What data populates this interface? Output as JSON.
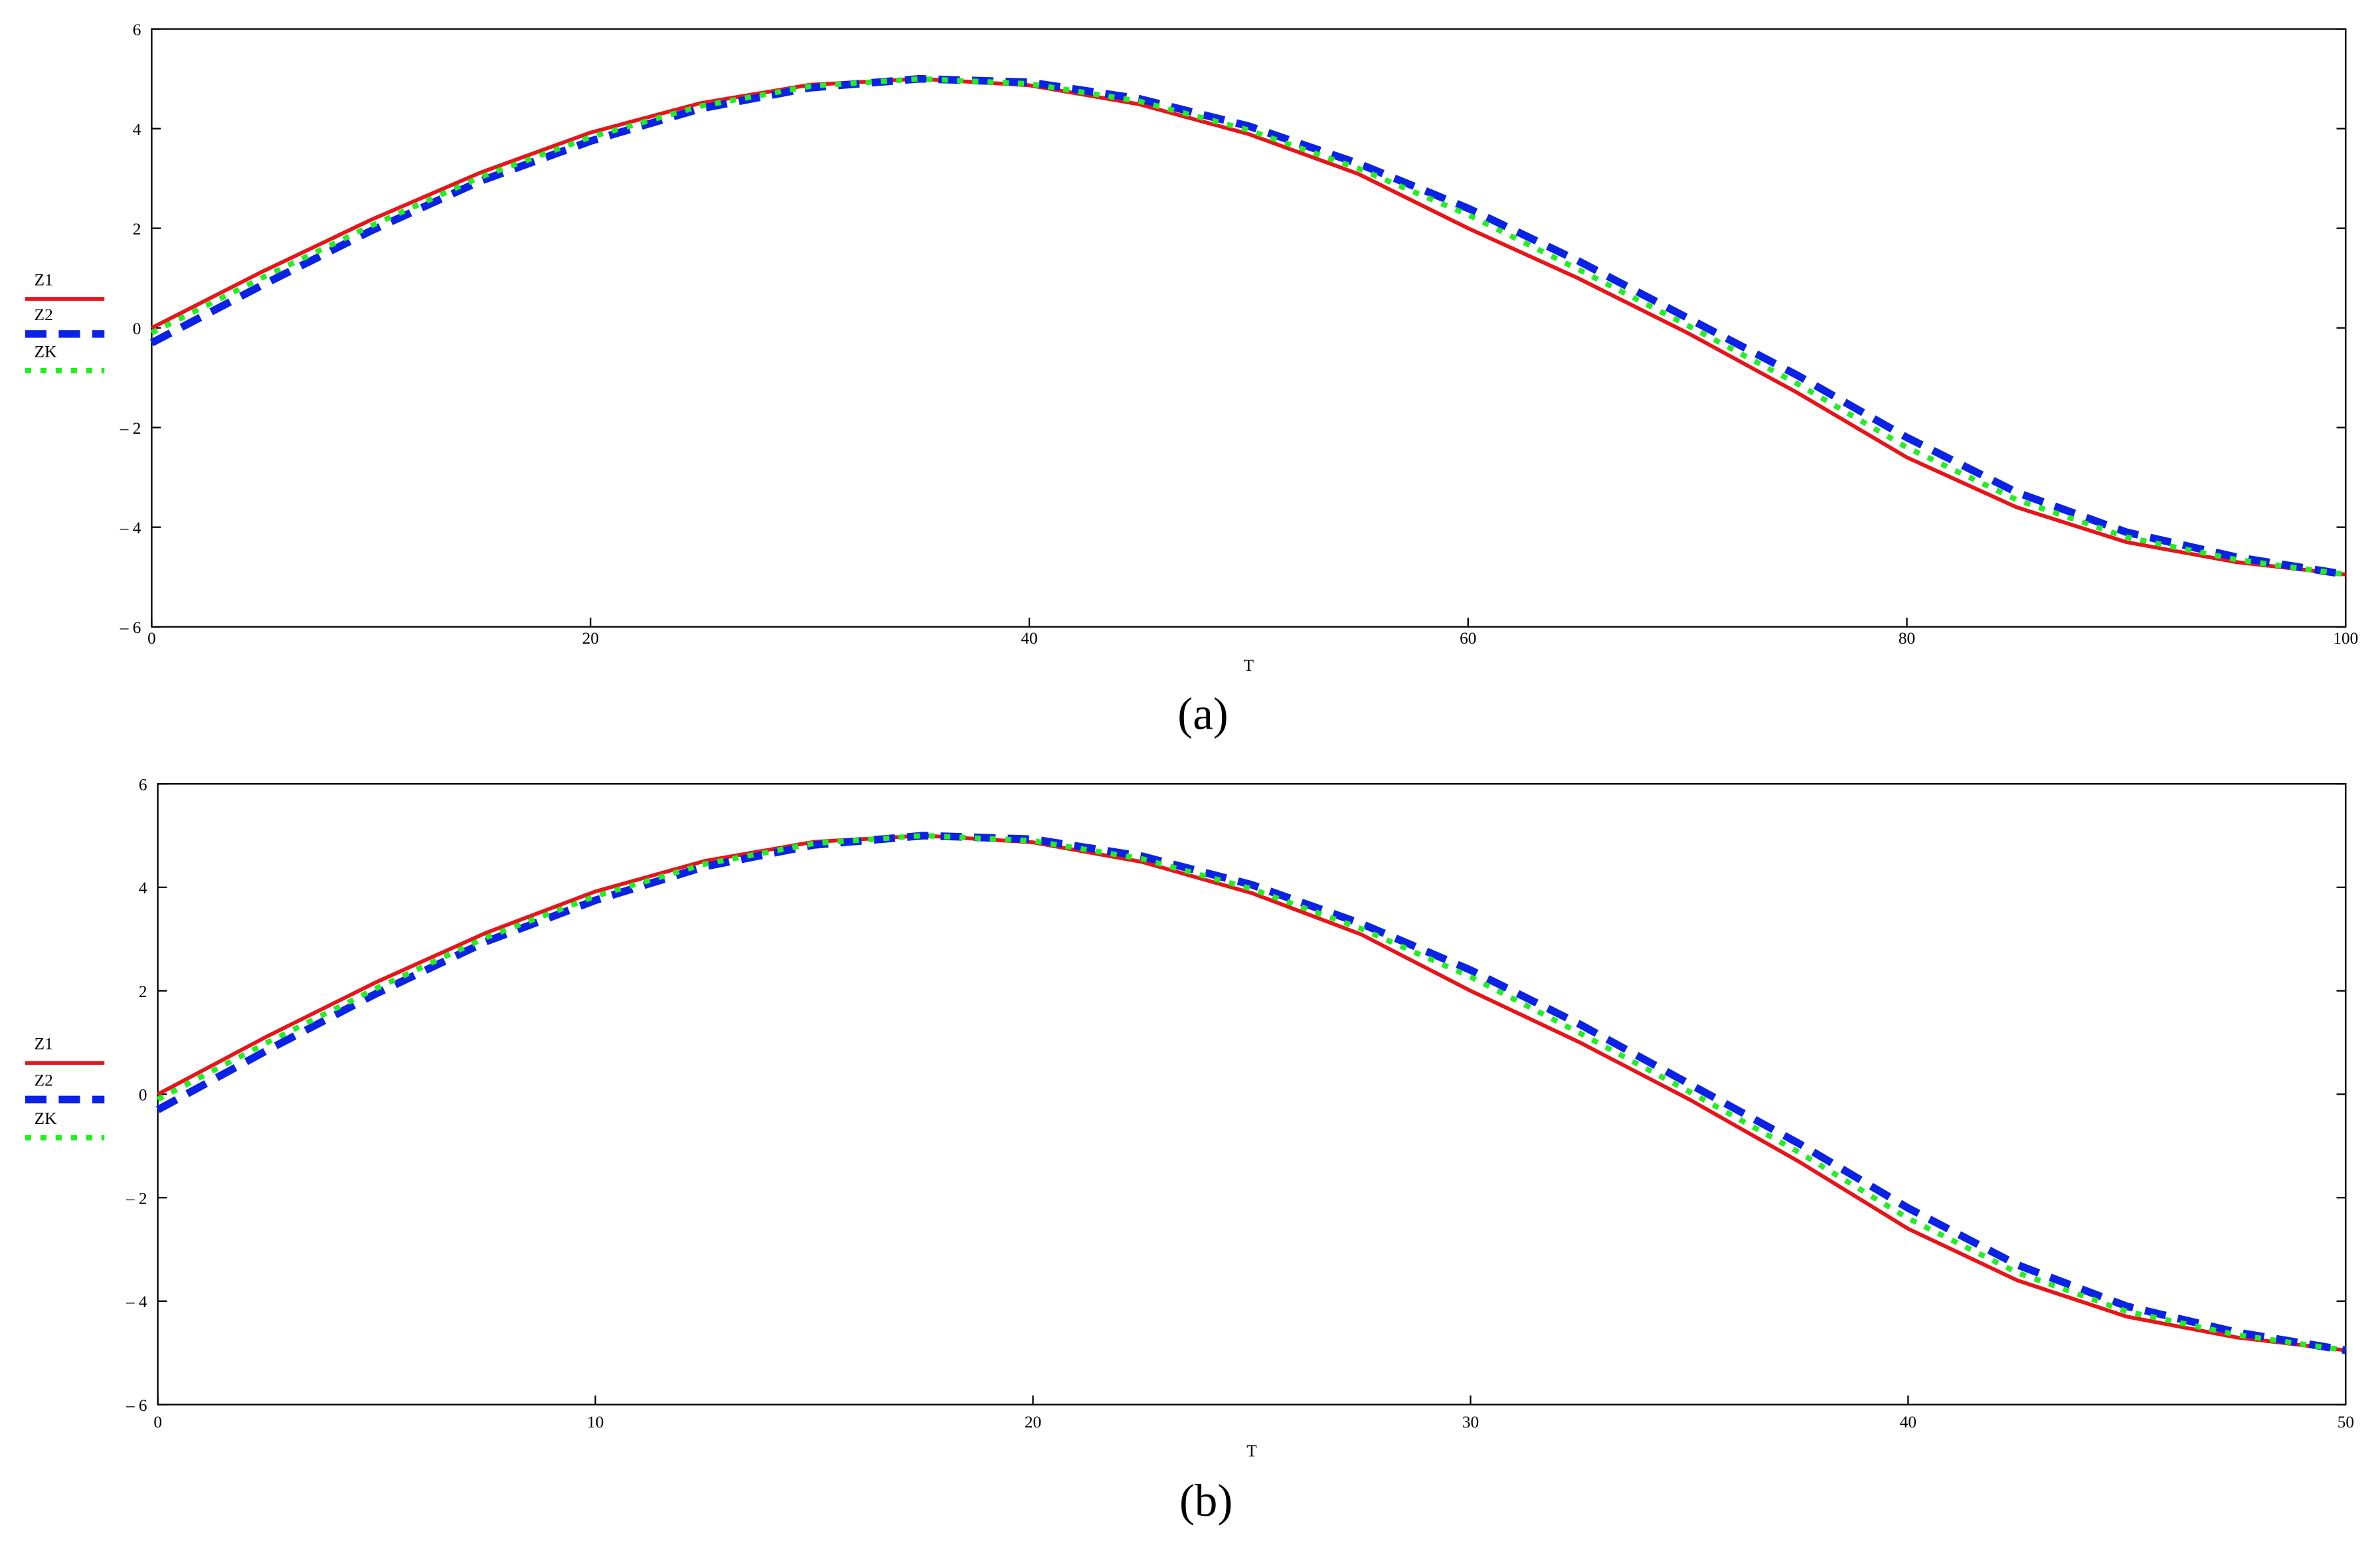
{
  "chart_data": [
    {
      "type": "line",
      "caption": "(a)",
      "xlabel": "T",
      "x": [
        0,
        5,
        10,
        15,
        20,
        25,
        30,
        35,
        40,
        45,
        50,
        55,
        60,
        65,
        70,
        75,
        80,
        85,
        90,
        95,
        100
      ],
      "xlim": [
        0,
        100
      ],
      "xticks": [
        0,
        20,
        40,
        60,
        80,
        100
      ],
      "ylim": [
        -6,
        6
      ],
      "yticks": [
        {
          "value": -6,
          "label": "– 6"
        },
        {
          "value": -4,
          "label": "– 4"
        },
        {
          "value": -2,
          "label": "– 2"
        },
        0,
        2,
        4,
        6
      ],
      "series": [
        {
          "name": "Z1",
          "color": "#e8141a",
          "style": "solid",
          "values": [
            0,
            1.12,
            2.17,
            3.12,
            3.92,
            4.51,
            4.88,
            5.0,
            4.87,
            4.49,
            3.89,
            3.09,
            2.0,
            1.0,
            -0.1,
            -1.3,
            -2.6,
            -3.6,
            -4.3,
            -4.7,
            -4.95
          ]
        },
        {
          "name": "Z2",
          "color": "#0a22e6",
          "style": "dashed",
          "values": [
            -0.3,
            0.85,
            1.95,
            2.95,
            3.75,
            4.4,
            4.82,
            5.0,
            4.93,
            4.6,
            4.05,
            3.3,
            2.4,
            1.35,
            0.2,
            -0.95,
            -2.2,
            -3.3,
            -4.1,
            -4.6,
            -4.95
          ]
        },
        {
          "name": "ZK",
          "color": "#22ee22",
          "style": "dotted",
          "values": [
            -0.1,
            1.0,
            2.05,
            3.03,
            3.83,
            4.45,
            4.85,
            5.0,
            4.9,
            4.55,
            3.97,
            3.2,
            2.27,
            1.18,
            0.05,
            -1.12,
            -2.4,
            -3.45,
            -4.2,
            -4.65,
            -4.95
          ]
        }
      ]
    },
    {
      "type": "line",
      "caption": "(b)",
      "xlabel": "T",
      "x": [
        0,
        2.5,
        5,
        7.5,
        10,
        12.5,
        15,
        17.5,
        20,
        22.5,
        25,
        27.5,
        30,
        32.5,
        35,
        37.5,
        40,
        42.5,
        45,
        47.5,
        50
      ],
      "xlim": [
        0,
        50
      ],
      "xticks": [
        0,
        10,
        20,
        30,
        40,
        50
      ],
      "ylim": [
        -6,
        6
      ],
      "yticks": [
        {
          "value": -6,
          "label": "– 6"
        },
        {
          "value": -4,
          "label": "– 4"
        },
        {
          "value": -2,
          "label": "– 2"
        },
        0,
        2,
        4,
        6
      ],
      "series": [
        {
          "name": "Z1",
          "color": "#e8141a",
          "style": "solid",
          "values": [
            0,
            1.12,
            2.17,
            3.12,
            3.92,
            4.51,
            4.88,
            5.0,
            4.87,
            4.49,
            3.89,
            3.09,
            2.0,
            1.0,
            -0.1,
            -1.3,
            -2.6,
            -3.6,
            -4.3,
            -4.7,
            -4.95
          ]
        },
        {
          "name": "Z2",
          "color": "#0a22e6",
          "style": "dashed",
          "values": [
            -0.3,
            0.85,
            1.95,
            2.95,
            3.75,
            4.4,
            4.82,
            5.0,
            4.93,
            4.6,
            4.05,
            3.3,
            2.4,
            1.35,
            0.2,
            -0.95,
            -2.2,
            -3.3,
            -4.1,
            -4.6,
            -4.95
          ]
        },
        {
          "name": "ZK",
          "color": "#22ee22",
          "style": "dotted",
          "values": [
            -0.1,
            1.0,
            2.05,
            3.03,
            3.83,
            4.45,
            4.85,
            5.0,
            4.9,
            4.55,
            3.97,
            3.2,
            2.27,
            1.18,
            0.05,
            -1.12,
            -2.4,
            -3.45,
            -4.2,
            -4.65,
            -4.95
          ]
        }
      ]
    }
  ]
}
